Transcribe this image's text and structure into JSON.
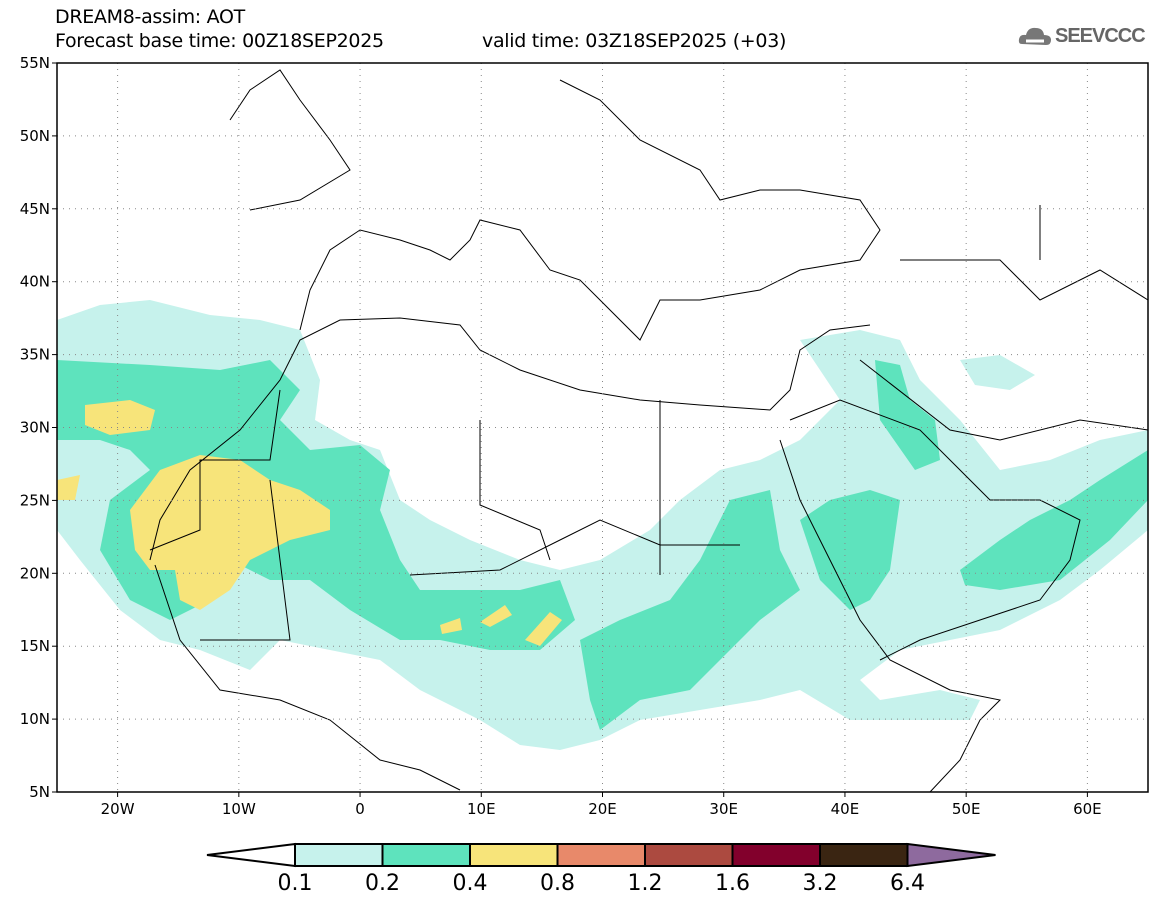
{
  "header": {
    "title": "DREAM8-assim: AOT",
    "base_time": "Forecast base time: 00Z18SEP2025",
    "valid_time": "valid time: 03Z18SEP2025 (+03)"
  },
  "logo": {
    "text": "SEEVCCC",
    "icon": "cloud-icon"
  },
  "map": {
    "lon_range": [
      -25,
      65
    ],
    "lat_range": [
      5,
      55
    ],
    "lat_labels": [
      "55N",
      "50N",
      "45N",
      "40N",
      "35N",
      "30N",
      "25N",
      "20N",
      "15N",
      "10N",
      "5N"
    ],
    "lon_labels": [
      "20W",
      "10W",
      "0",
      "10E",
      "20E",
      "30E",
      "40E",
      "50E",
      "60E"
    ]
  },
  "colorbar": {
    "labels": [
      "0.1",
      "0.2",
      "0.4",
      "0.8",
      "1.2",
      "1.6",
      "3.2",
      "6.4"
    ],
    "colors": [
      "#ffffff",
      "#c6f2ec",
      "#5ee3bd",
      "#f7e47a",
      "#e8896a",
      "#ac4a40",
      "#82002c",
      "#3a2512",
      "#8e6a9e"
    ]
  }
}
